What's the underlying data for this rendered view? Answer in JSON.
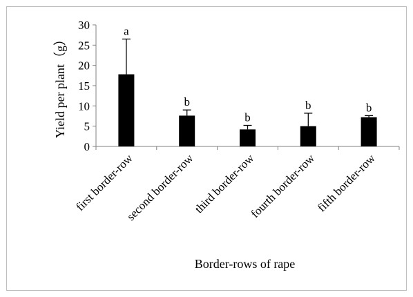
{
  "chart_data": {
    "type": "bar",
    "title": "",
    "xlabel": "Border-rows of rape",
    "ylabel": "Yield per plant（g）",
    "ylim": [
      0,
      30
    ],
    "yticks": [
      0,
      5,
      10,
      15,
      20,
      25,
      30
    ],
    "categories": [
      "first border-row",
      "second border-row",
      "third border-row",
      "fourth border-row",
      "fifth border-row"
    ],
    "values": [
      17.8,
      7.6,
      4.2,
      5.0,
      7.2
    ],
    "error_upper": [
      8.7,
      1.4,
      1.0,
      3.2,
      0.4
    ],
    "significance_letters": [
      "a",
      "b",
      "b",
      "b",
      "b"
    ],
    "bar_color": "#000000",
    "grid": false,
    "legend": "none"
  }
}
